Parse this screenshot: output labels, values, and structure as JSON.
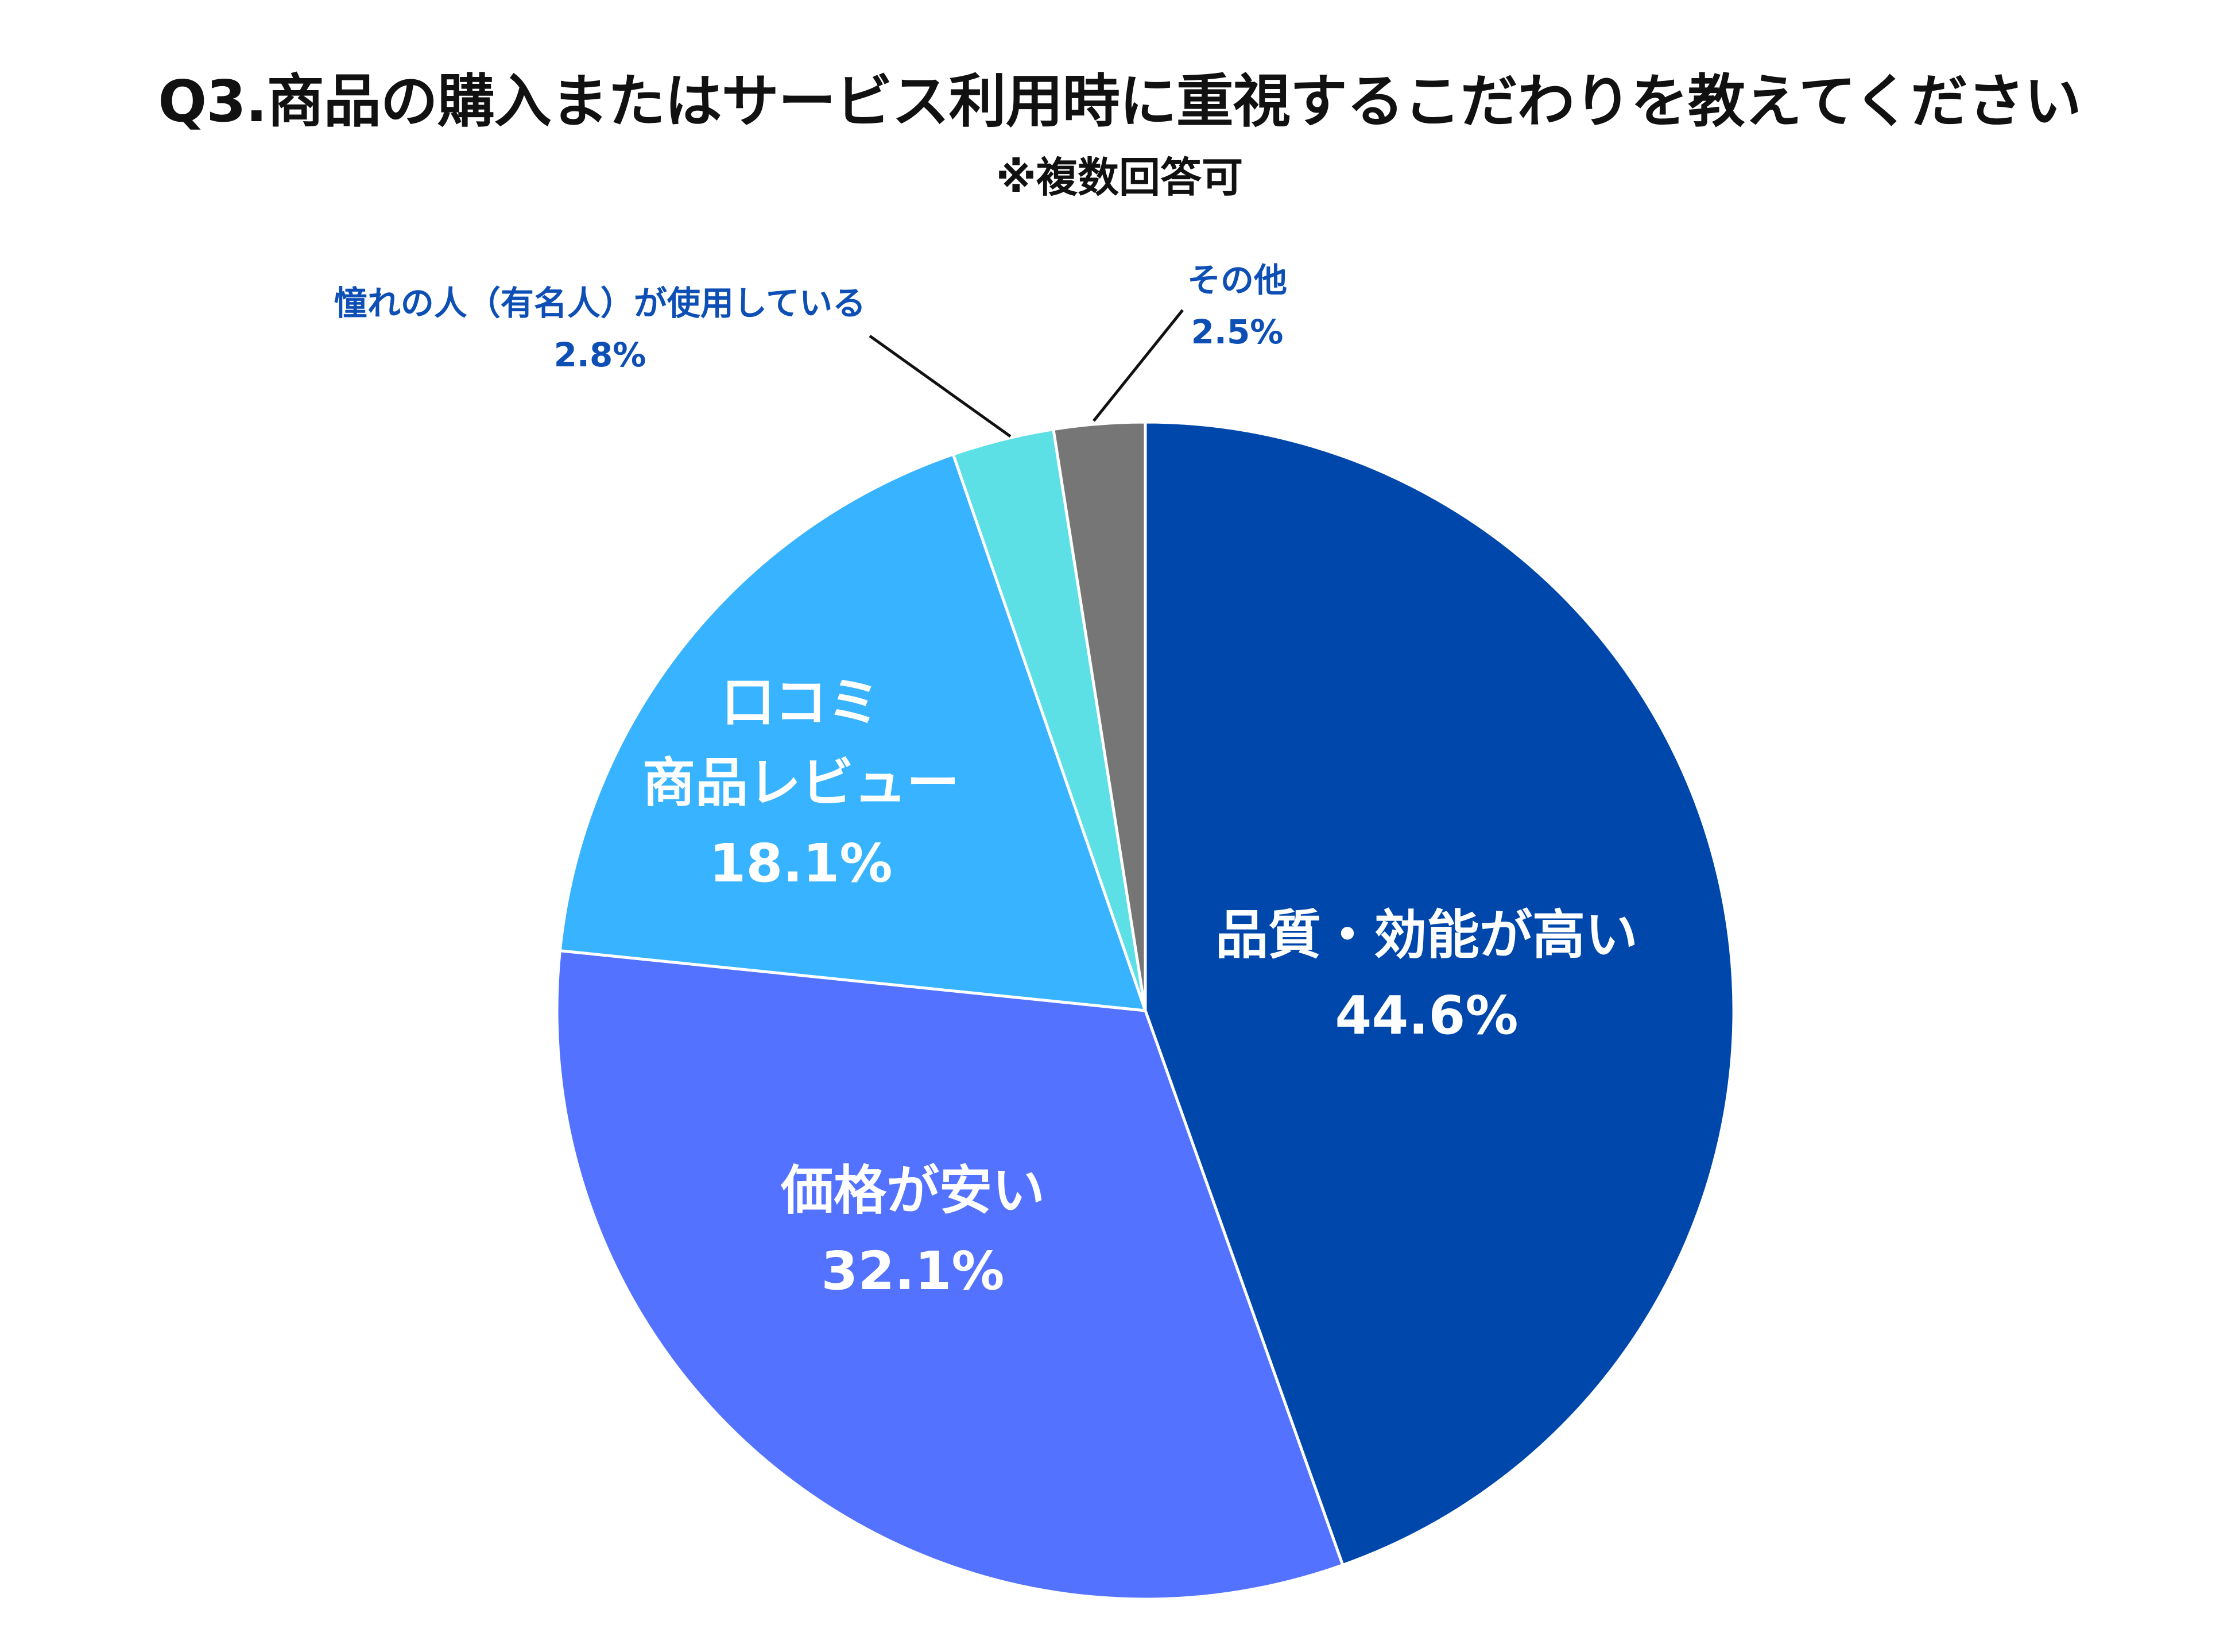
{
  "header": {
    "title": "Q3.商品の購入またはサービス利用時に重視するこだわりを教えてください",
    "subtitle": "※複数回答可"
  },
  "chart_data": {
    "type": "pie",
    "title": "Q3.商品の購入またはサービス利用時に重視するこだわりを教えてください",
    "subtitle": "※複数回答可",
    "start": "12 o'clock, clockwise",
    "slices": [
      {
        "label_lines": [
          "品質・効能が高い"
        ],
        "value": 44.6,
        "value_label": "44.6%",
        "color": "#0047AB",
        "label_style": "inside"
      },
      {
        "label_lines": [
          "価格が安い"
        ],
        "value": 32.1,
        "value_label": "32.1%",
        "color": "#5272FF",
        "label_style": "inside"
      },
      {
        "label_lines": [
          "口コミ",
          "商品レビュー"
        ],
        "value": 18.1,
        "value_label": "18.1%",
        "color": "#38B3FF",
        "label_style": "inside"
      },
      {
        "label_lines": [
          "憧れの人（有名人）が使用している"
        ],
        "value": 2.8,
        "value_label": "2.8%",
        "color": "#5CE0E6",
        "label_style": "outside"
      },
      {
        "label_lines": [
          "その他"
        ],
        "value": 2.5,
        "value_label": "2.5%",
        "color": "#767676",
        "label_style": "outside"
      }
    ],
    "outside_label_color": "#0D4FB5",
    "leader_line_color": "#111111"
  }
}
